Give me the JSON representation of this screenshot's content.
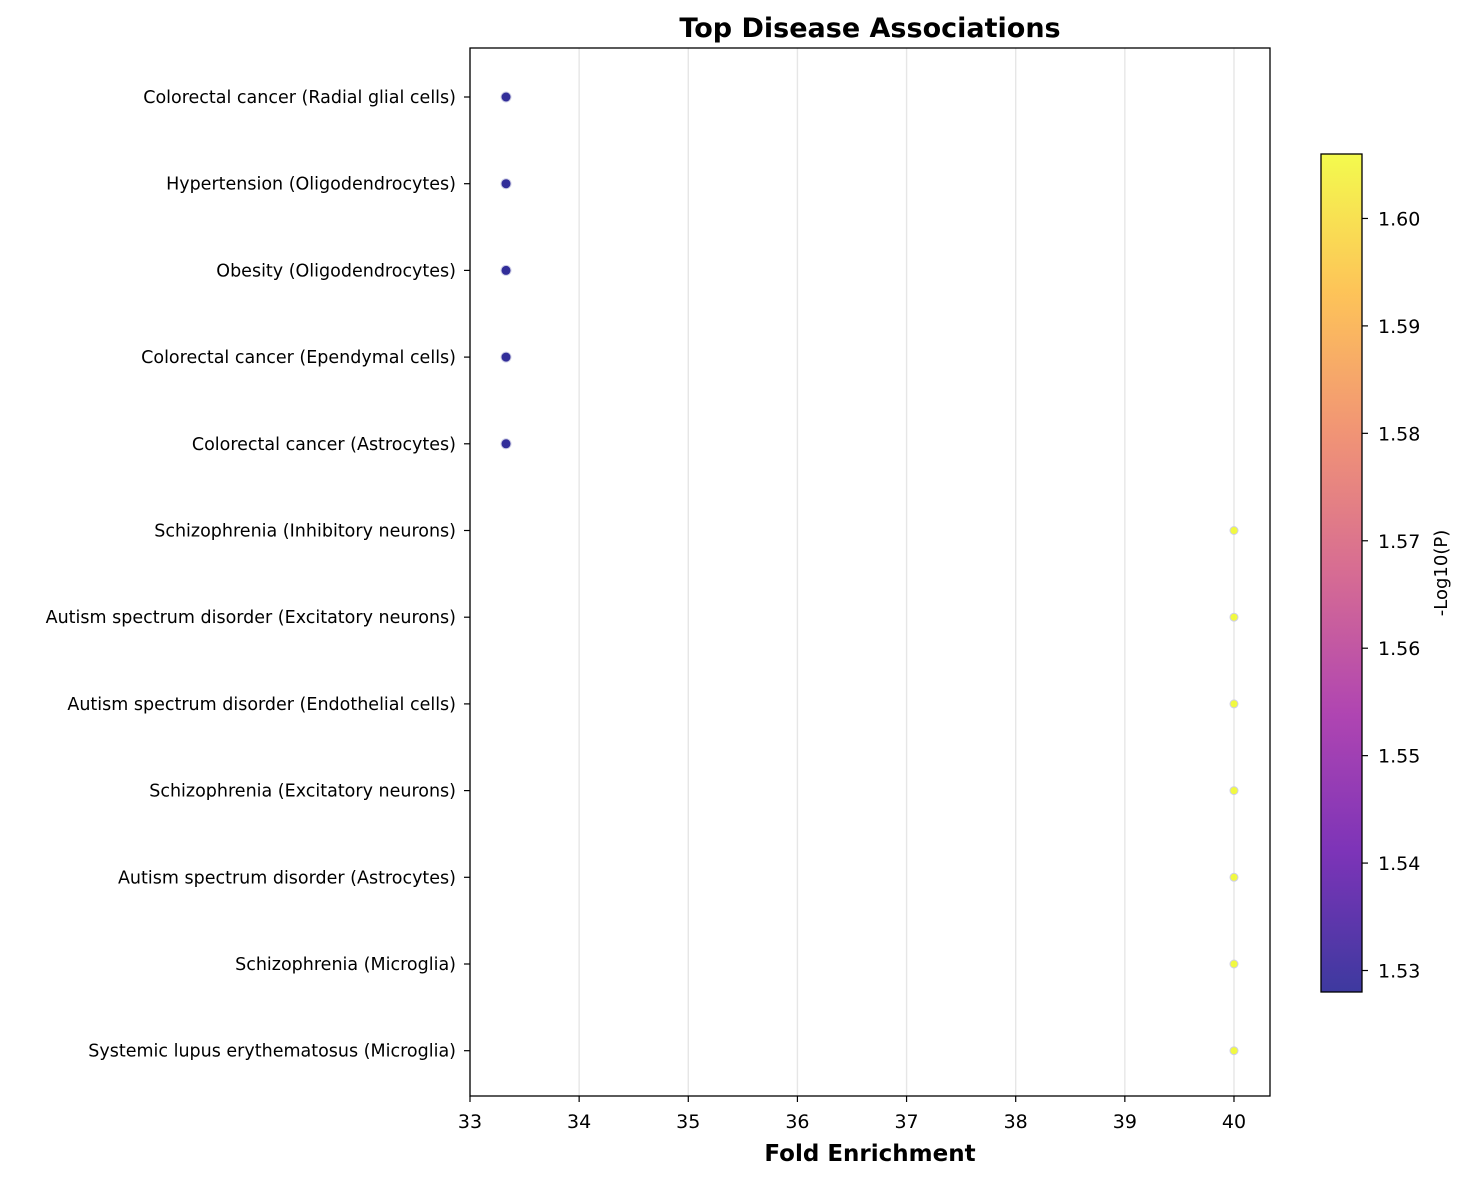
{
  "chart_data": {
    "type": "scatter",
    "title": "Top Disease Associations",
    "xlabel": "Fold Enrichment",
    "ylabel": "",
    "xlim": [
      33,
      40.33
    ],
    "xticks": [
      33,
      34,
      35,
      36,
      37,
      38,
      39,
      40
    ],
    "grid": "x",
    "categories": [
      "Colorectal cancer (Radial glial cells)",
      "Hypertension (Oligodendrocytes)",
      "Obesity (Oligodendrocytes)",
      "Colorectal cancer (Ependymal cells)",
      "Colorectal cancer (Astrocytes)",
      "Schizophrenia (Inhibitory neurons)",
      "Autism spectrum disorder (Excitatory neurons)",
      "Autism spectrum disorder (Endothelial cells)",
      "Schizophrenia (Excitatory neurons)",
      "Autism spectrum disorder (Astrocytes)",
      "Schizophrenia (Microglia)",
      "Systemic lupus erythematosus (Microglia)"
    ],
    "points": [
      {
        "label": "Colorectal cancer (Radial glial cells)",
        "x": 33.33,
        "color_value": 1.528,
        "size": 5
      },
      {
        "label": "Hypertension (Oligodendrocytes)",
        "x": 33.33,
        "color_value": 1.528,
        "size": 5
      },
      {
        "label": "Obesity (Oligodendrocytes)",
        "x": 33.33,
        "color_value": 1.528,
        "size": 5
      },
      {
        "label": "Colorectal cancer (Ependymal cells)",
        "x": 33.33,
        "color_value": 1.528,
        "size": 5
      },
      {
        "label": "Colorectal cancer (Astrocytes)",
        "x": 33.33,
        "color_value": 1.528,
        "size": 5
      },
      {
        "label": "Schizophrenia (Inhibitory neurons)",
        "x": 40,
        "color_value": 1.606,
        "size": 4
      },
      {
        "label": "Autism spectrum disorder (Excitatory neurons)",
        "x": 40,
        "color_value": 1.606,
        "size": 4
      },
      {
        "label": "Autism spectrum disorder (Endothelial cells)",
        "x": 40,
        "color_value": 1.606,
        "size": 4
      },
      {
        "label": "Schizophrenia (Excitatory neurons)",
        "x": 40,
        "color_value": 1.606,
        "size": 4
      },
      {
        "label": "Autism spectrum disorder (Astrocytes)",
        "x": 40,
        "color_value": 1.606,
        "size": 4
      },
      {
        "label": "Schizophrenia (Microglia)",
        "x": 40,
        "color_value": 1.606,
        "size": 4
      },
      {
        "label": "Systemic lupus erythematosus (Microglia)",
        "x": 40,
        "color_value": 1.606,
        "size": 4
      }
    ],
    "colorbar": {
      "label": "-Log10(P)",
      "range": [
        1.528,
        1.606
      ],
      "ticks": [
        "1.53",
        "1.54",
        "1.55",
        "1.56",
        "1.57",
        "1.58",
        "1.59",
        "1.60"
      ],
      "colormap": "plasma",
      "colors": [
        "#0d0887",
        "#5c01a6",
        "#9c179e",
        "#cc4778",
        "#ed7953",
        "#fdb42f",
        "#f0f921"
      ],
      "placement": "right"
    }
  }
}
